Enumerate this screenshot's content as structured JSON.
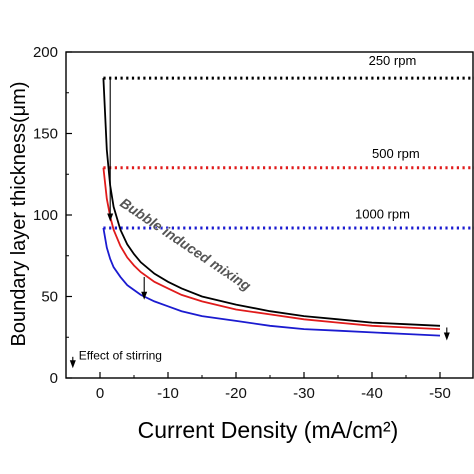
{
  "chart_data": {
    "type": "line",
    "xlabel": "Current Density (mA/cm²)",
    "ylabel": "Boundary layer thickness(μm)",
    "xlim": [
      5,
      -55
    ],
    "ylim": [
      0,
      200
    ],
    "x_ticks": [
      0,
      -10,
      -20,
      -30,
      -40,
      -50
    ],
    "x_tick_labels": [
      "0",
      "-10",
      "-20",
      "-30",
      "-40",
      "-50"
    ],
    "y_ticks": [
      0,
      50,
      100,
      150,
      200
    ],
    "y_tick_labels": [
      "0",
      "50",
      "100",
      "150",
      "200"
    ],
    "grid": false,
    "reference_lines": [
      {
        "label": "250 rpm",
        "y": 184,
        "color": "#000000"
      },
      {
        "label": "500 rpm",
        "y": 129,
        "color": "#e01b1b"
      },
      {
        "label": "1000 rpm",
        "y": 92,
        "color": "#1b1bd0"
      }
    ],
    "series": [
      {
        "color": "#000000",
        "x": [
          -0.5,
          -1,
          -1.5,
          -2,
          -3,
          -4,
          -5,
          -6,
          -8,
          -10,
          -12,
          -15,
          -20,
          -25,
          -30,
          -35,
          -40,
          -45,
          -50
        ],
        "y": [
          184,
          140,
          118,
          105,
          91,
          82,
          76,
          71,
          64,
          59,
          55,
          50,
          45,
          41,
          38,
          36,
          34,
          33,
          32
        ]
      },
      {
        "color": "#e01b1b",
        "x": [
          -0.5,
          -1,
          -1.5,
          -2,
          -3,
          -4,
          -5,
          -6,
          -8,
          -10,
          -12,
          -15,
          -20,
          -25,
          -30,
          -35,
          -40,
          -45,
          -50
        ],
        "y": [
          129,
          110,
          99,
          91,
          81,
          74,
          69,
          65,
          59,
          55,
          51,
          47,
          42,
          39,
          36,
          34,
          32,
          31,
          30
        ]
      },
      {
        "color": "#1b1bd0",
        "x": [
          -0.5,
          -1,
          -1.5,
          -2,
          -3,
          -4,
          -5,
          -6,
          -8,
          -10,
          -12,
          -15,
          -20,
          -25,
          -30,
          -35,
          -40,
          -45,
          -50
        ],
        "y": [
          92,
          80,
          73,
          68,
          62,
          57,
          54,
          51,
          47,
          44,
          41,
          38,
          35,
          32,
          30,
          29,
          28,
          27,
          26
        ]
      }
    ],
    "annotations": [
      {
        "text": "Bubble induced mixing"
      },
      {
        "text": "Effect of stirring"
      }
    ],
    "arrows": [
      {
        "x": -1.5,
        "y_from": 184,
        "y_to": 96
      },
      {
        "x": -6.5,
        "y_from": 62,
        "y_to": 48
      },
      {
        "x": -51,
        "y_from": 31,
        "y_to": 23
      }
    ],
    "legend_arrow": {
      "x_from": 4,
      "y_from": 13,
      "y_to": 6
    }
  }
}
